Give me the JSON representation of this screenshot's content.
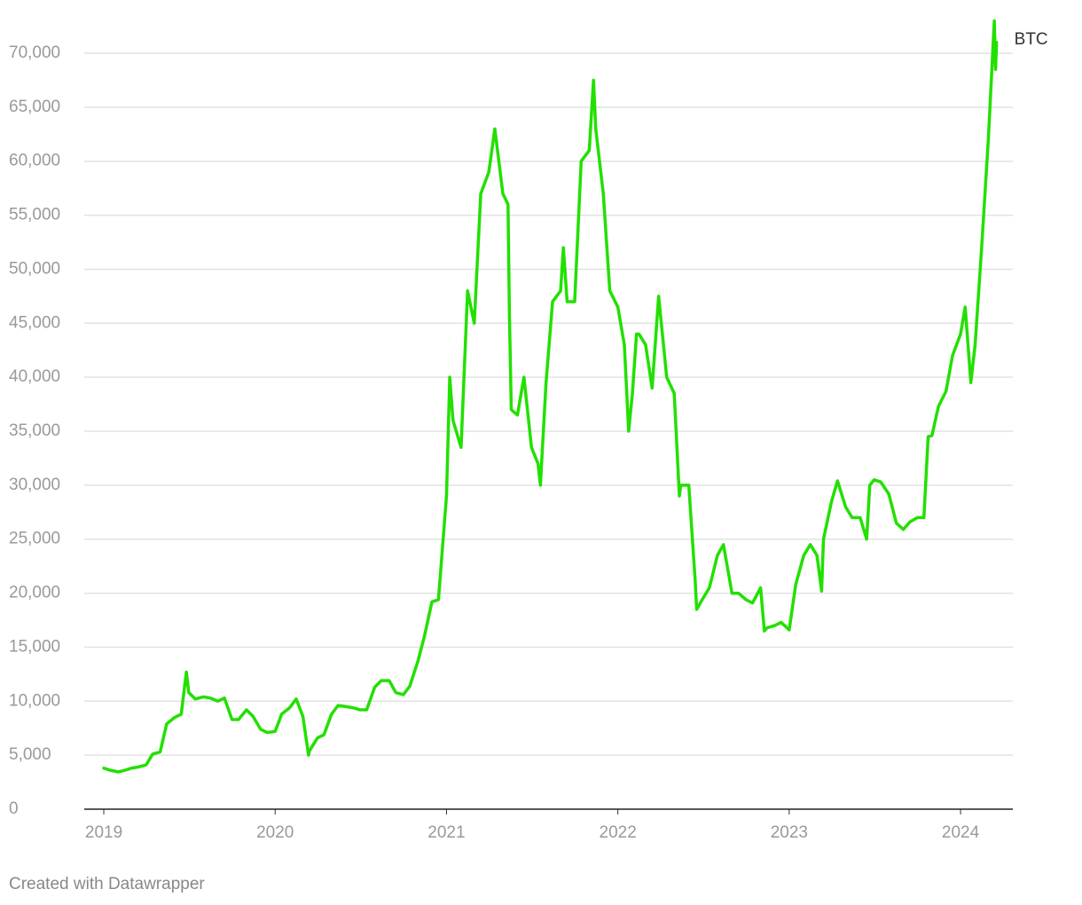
{
  "chart_data": {
    "type": "line",
    "source": "Created with Datawrapper",
    "x": [
      2019.0,
      2019.038,
      2019.085,
      2019.123,
      2019.162,
      2019.2,
      2019.247,
      2019.285,
      2019.329,
      2019.367,
      2019.414,
      2019.452,
      2019.482,
      2019.496,
      2019.534,
      2019.581,
      2019.619,
      2019.666,
      2019.704,
      2019.748,
      2019.786,
      2019.833,
      2019.871,
      2019.915,
      2019.953,
      2020.0,
      2020.038,
      2020.085,
      2020.123,
      2020.162,
      2020.195,
      2020.2,
      2020.247,
      2020.285,
      2020.329,
      2020.367,
      2020.414,
      2020.452,
      2020.496,
      2020.534,
      2020.581,
      2020.619,
      2020.666,
      2020.704,
      2020.748,
      2020.786,
      2020.833,
      2020.871,
      2020.915,
      2020.953,
      2021.0,
      2021.019,
      2021.038,
      2021.085,
      2021.123,
      2021.162,
      2021.2,
      2021.247,
      2021.282,
      2021.329,
      2021.359,
      2021.367,
      2021.378,
      2021.414,
      2021.452,
      2021.496,
      2021.534,
      2021.548,
      2021.581,
      2021.619,
      2021.666,
      2021.682,
      2021.704,
      2021.748,
      2021.786,
      2021.833,
      2021.858,
      2021.871,
      2021.915,
      2021.953,
      2022.0,
      2022.038,
      2022.063,
      2022.085,
      2022.109,
      2022.123,
      2022.162,
      2022.2,
      2022.238,
      2022.285,
      2022.329,
      2022.359,
      2022.367,
      2022.414,
      2022.452,
      2022.46,
      2022.496,
      2022.534,
      2022.581,
      2022.616,
      2022.666,
      2022.704,
      2022.748,
      2022.786,
      2022.833,
      2022.855,
      2022.871,
      2022.915,
      2022.953,
      2023.0,
      2023.038,
      2023.085,
      2023.123,
      2023.162,
      2023.189,
      2023.2,
      2023.247,
      2023.282,
      2023.329,
      2023.367,
      2023.414,
      2023.452,
      2023.47,
      2023.496,
      2023.534,
      2023.581,
      2023.625,
      2023.666,
      2023.704,
      2023.748,
      2023.786,
      2023.811,
      2023.833,
      2023.871,
      2023.915,
      2023.953,
      2024.0,
      2024.027,
      2024.06,
      2024.085,
      2024.123,
      2024.162,
      2024.197,
      2024.204,
      2024.21
    ],
    "series": [
      {
        "name": "BTC",
        "color": "#22e000",
        "values": [
          3800,
          3600,
          3450,
          3600,
          3800,
          3900,
          4100,
          5100,
          5300,
          7900,
          8500,
          8800,
          12700,
          10800,
          10200,
          10400,
          10300,
          10000,
          10300,
          8300,
          8300,
          9200,
          8600,
          7400,
          7100,
          7200,
          8800,
          9400,
          10200,
          8600,
          5000,
          5400,
          6600,
          6900,
          8800,
          9600,
          9500,
          9400,
          9200,
          9200,
          11300,
          11900,
          11900,
          10800,
          10600,
          11400,
          13700,
          16000,
          19200,
          19400,
          29000,
          40000,
          36000,
          33500,
          48000,
          45000,
          57000,
          59000,
          63000,
          57000,
          56000,
          46000,
          37000,
          36500,
          40000,
          33500,
          32000,
          30000,
          39500,
          47000,
          48000,
          52000,
          47000,
          47000,
          60000,
          61000,
          67500,
          63000,
          57000,
          48000,
          46500,
          43000,
          35000,
          38500,
          44000,
          44000,
          43000,
          39000,
          47500,
          40000,
          38500,
          29000,
          30000,
          30000,
          21000,
          18500,
          19500,
          20500,
          23500,
          24500,
          20000,
          20000,
          19400,
          19100,
          20500,
          16500,
          16800,
          17000,
          17300,
          16600,
          20800,
          23500,
          24500,
          23500,
          20200,
          25000,
          28500,
          30400,
          28000,
          27000,
          27000,
          25000,
          30000,
          30500,
          30300,
          29200,
          26500,
          25900,
          26600,
          27000,
          27000,
          34500,
          34600,
          37300,
          38700,
          42000,
          44000,
          46500,
          39500,
          43000,
          52000,
          62000,
          73000,
          68500,
          71000
        ]
      }
    ],
    "xlim": [
      2018.886,
      2024.305
    ],
    "xticks": [
      2019,
      2020,
      2021,
      2022,
      2023,
      2024
    ],
    "ylim": [
      0,
      73000
    ],
    "yticks": [
      0,
      {
        "value": 5000,
        "label": "5,000"
      },
      {
        "value": 10000,
        "label": "10,000"
      },
      {
        "value": 15000,
        "label": "15,000"
      },
      {
        "value": 20000,
        "label": "20,000"
      },
      {
        "value": 25000,
        "label": "25,000"
      },
      {
        "value": 30000,
        "label": "30,000"
      },
      {
        "value": 35000,
        "label": "35,000"
      },
      {
        "value": 40000,
        "label": "40,000"
      },
      {
        "value": 45000,
        "label": "45,000"
      },
      {
        "value": 50000,
        "label": "50,000"
      },
      {
        "value": 55000,
        "label": "55,000"
      },
      {
        "value": 60000,
        "label": "60,000"
      },
      {
        "value": 65000,
        "label": "65,000"
      },
      {
        "value": 70000,
        "label": "70,000"
      }
    ],
    "grid": true
  }
}
